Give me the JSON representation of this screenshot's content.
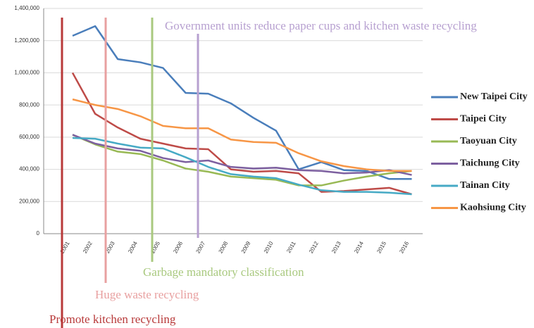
{
  "chart_data": {
    "type": "line",
    "categories": [
      "2001",
      "2002",
      "2003",
      "2004",
      "2005",
      "2006",
      "2007",
      "2008",
      "2009",
      "2010",
      "2011",
      "2012",
      "2013",
      "2014",
      "2015",
      "2016"
    ],
    "series": [
      {
        "name": "New Taipei City",
        "color": "#4a7ebb",
        "values": [
          1230000,
          1290000,
          1085000,
          1065000,
          1030000,
          875000,
          870000,
          810000,
          720000,
          640000,
          400000,
          445000,
          395000,
          390000,
          340000,
          340000
        ]
      },
      {
        "name": "Taipei City",
        "color": "#be4b48",
        "values": [
          1000000,
          745000,
          660000,
          590000,
          560000,
          530000,
          525000,
          400000,
          385000,
          390000,
          375000,
          260000,
          265000,
          275000,
          285000,
          245000
        ]
      },
      {
        "name": "Taoyuan City",
        "color": "#98b954",
        "values": [
          615000,
          555000,
          510000,
          495000,
          455000,
          405000,
          385000,
          355000,
          345000,
          335000,
          300000,
          300000,
          330000,
          355000,
          375000,
          390000
        ]
      },
      {
        "name": "Taichung City",
        "color": "#7d60a0",
        "values": [
          615000,
          560000,
          530000,
          515000,
          470000,
          445000,
          455000,
          415000,
          405000,
          410000,
          395000,
          390000,
          375000,
          380000,
          395000,
          365000
        ]
      },
      {
        "name": "Tainan City",
        "color": "#46aac5",
        "values": [
          595000,
          590000,
          560000,
          535000,
          530000,
          475000,
          415000,
          370000,
          355000,
          345000,
          305000,
          270000,
          260000,
          260000,
          255000,
          245000
        ]
      },
      {
        "name": "Kaohsiung City",
        "color": "#f79646",
        "values": [
          835000,
          800000,
          775000,
          730000,
          670000,
          655000,
          655000,
          585000,
          570000,
          565000,
          500000,
          450000,
          420000,
          400000,
          390000,
          390000
        ]
      }
    ],
    "ylim": [
      0,
      1400000
    ],
    "yticks": [
      0,
      {
        "value": 200000,
        "label": "200,000"
      },
      {
        "value": 400000,
        "label": "400,000"
      },
      {
        "value": 600000,
        "label": "600,000"
      },
      {
        "value": 800000,
        "label": "800,000"
      },
      {
        "value": 1000000,
        "label": "1,000,000"
      },
      {
        "value": 1200000,
        "label": "1,200,000"
      },
      {
        "value": 1400000,
        "label": "1,400,000"
      }
    ],
    "grid": true,
    "annotations": [
      {
        "text": "Promote kitchen recycling",
        "color": "#b83a3a"
      },
      {
        "text": "Huge waste recycling",
        "color": "#e8a0a0"
      },
      {
        "text": "Garbage mandatory classification",
        "color": "#a9c97f"
      },
      {
        "text": "Government units reduce paper cups and kitchen waste recycling",
        "color": "#b7a0d0"
      }
    ]
  }
}
